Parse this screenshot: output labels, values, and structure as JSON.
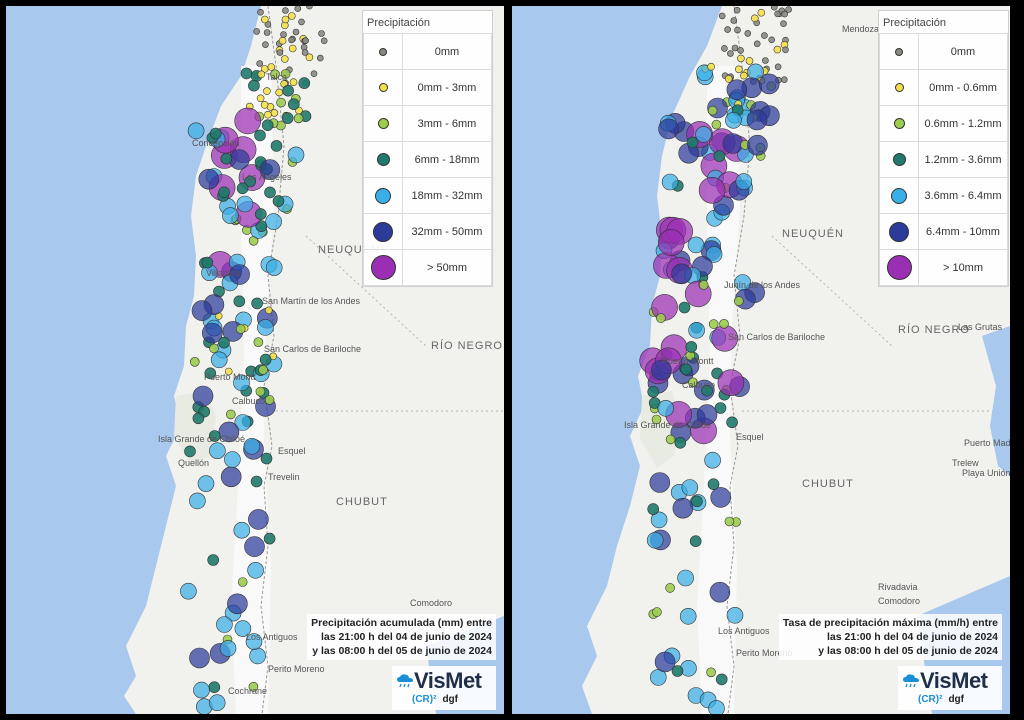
{
  "colors": {
    "ocean": "#a8c8ee",
    "land": "#f1f1ee",
    "snow": "#fafafa",
    "border": "#999999",
    "bin_colors": [
      "#8a8a84",
      "#f5e04a",
      "#9ccc4e",
      "#1f7a6c",
      "#3aaee6",
      "#2c3a9a",
      "#9b2fb4"
    ]
  },
  "panels": [
    {
      "id": "left",
      "legend": {
        "title": "Precipitación",
        "items": [
          {
            "label": "0mm",
            "color_index": 0,
            "size": 6
          },
          {
            "label": "0mm - 3mm",
            "color_index": 1,
            "size": 7
          },
          {
            "label": "3mm - 6mm",
            "color_index": 2,
            "size": 9
          },
          {
            "label": "6mm - 18mm",
            "color_index": 3,
            "size": 11
          },
          {
            "label": "18mm - 32mm",
            "color_index": 4,
            "size": 14
          },
          {
            "label": "32mm - 50mm",
            "color_index": 5,
            "size": 18
          },
          {
            "label": "> 50mm",
            "color_index": 6,
            "size": 23
          }
        ]
      },
      "caption": [
        "Precipitación acumulada (mm) entre",
        "las 21:00 h del 04 de junio de 2024",
        "y las 08:00 h del 05 de junio de 2024"
      ],
      "brand": {
        "name": "VisMet",
        "cr": "(CR)²",
        "dgf": "dgf"
      },
      "places": [
        "Talca",
        "Concepción",
        "Los Ángeles",
        "Villarrica",
        "San Martín de los Andes",
        "San Carlos de Bariloche",
        "Puerto Montt",
        "Calbuco",
        "Isla Grande de Chiloé",
        "Quellón",
        "Esquel",
        "Trevelin",
        "Comodoro",
        "Los Antiguos",
        "Perito Moreno",
        "Cochrane"
      ],
      "regions": [
        "NEUQUÉN",
        "RÍO NEGRO",
        "CHUBUT"
      ]
    },
    {
      "id": "right",
      "legend": {
        "title": "Precipitación",
        "items": [
          {
            "label": "0mm",
            "color_index": 0,
            "size": 6
          },
          {
            "label": "0mm - 0.6mm",
            "color_index": 1,
            "size": 7
          },
          {
            "label": "0.6mm - 1.2mm",
            "color_index": 2,
            "size": 9
          },
          {
            "label": "1.2mm - 3.6mm",
            "color_index": 3,
            "size": 11
          },
          {
            "label": "3.6mm - 6.4mm",
            "color_index": 4,
            "size": 14
          },
          {
            "label": "6.4mm - 10mm",
            "color_index": 5,
            "size": 18
          },
          {
            "label": "> 10mm",
            "color_index": 6,
            "size": 23
          }
        ]
      },
      "caption": [
        "Tasa de precipitación máxima (mm/h) entre",
        "las 21:00 h del 04 de junio de 2024",
        "y las 08:00 h del 05 de junio de 2024"
      ],
      "brand": {
        "name": "VisMet",
        "cr": "(CR)²",
        "dgf": "dgf"
      },
      "places": [
        "Mendoza",
        "Puerto Montt",
        "Calbuco",
        "San Carlos de Bariloche",
        "Junín de los Andes",
        "Esquel",
        "Puerto Madryn",
        "Trelew",
        "Playa Unión",
        "Las Grutas",
        "Rivadavia",
        "Comodoro",
        "Perito Moreno",
        "Los Antiguos",
        "Isla Grande de Chiloé"
      ],
      "regions": [
        "NEUQUÉN",
        "RÍO NEGRO",
        "CHUBUT"
      ]
    }
  ]
}
